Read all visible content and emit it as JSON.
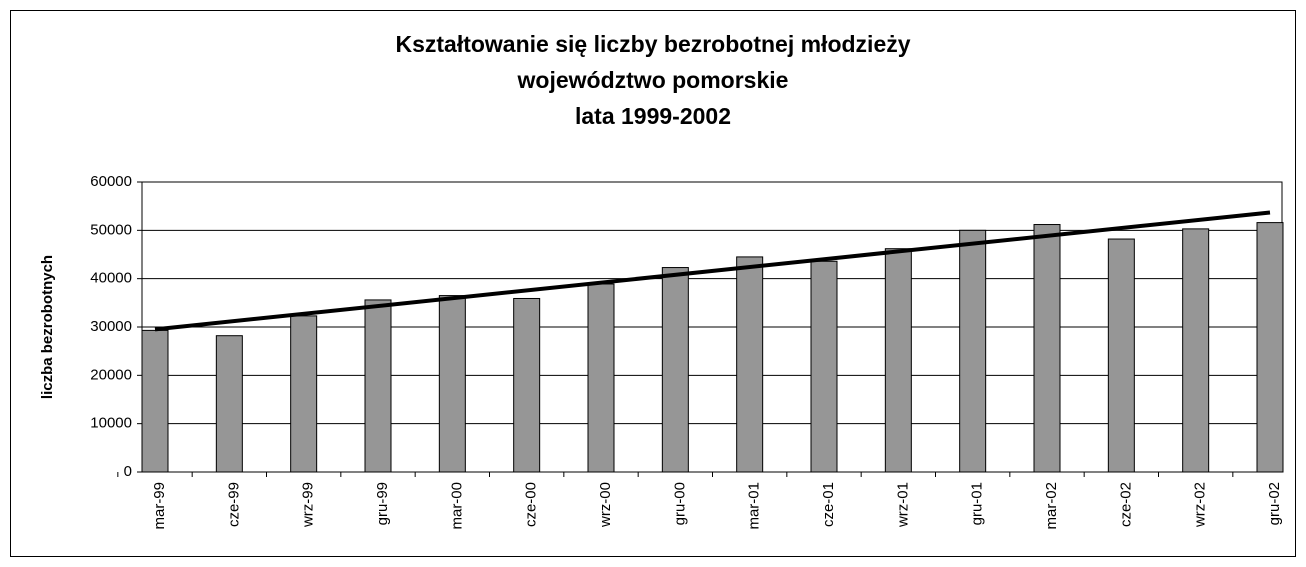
{
  "chart_data": {
    "type": "bar",
    "title": [
      "Kształtowanie się liczby bezrobotnej młodzieży",
      "województwo pomorskie",
      "lata 1999-2002"
    ],
    "y_label": "liczba bezrobotnych",
    "categories": [
      "mar-99",
      "cze-99",
      "wrz-99",
      "gru-99",
      "mar-00",
      "cze-00",
      "wrz-00",
      "gru-00",
      "mar-01",
      "cze-01",
      "wrz-01",
      "gru-01",
      "mar-02",
      "cze-02",
      "wrz-02",
      "gru-02"
    ],
    "values": [
      29300,
      28200,
      32300,
      35600,
      36500,
      35900,
      38900,
      42300,
      44500,
      43600,
      46200,
      50000,
      51200,
      48200,
      50300,
      51600
    ],
    "color": "#969696",
    "trendline": {
      "start": 29500,
      "end": 53700,
      "color": "#000000"
    },
    "ylim": [
      0,
      60000
    ],
    "yticks": [
      0,
      10000,
      20000,
      30000,
      40000,
      50000,
      60000
    ],
    "grid": true
  }
}
